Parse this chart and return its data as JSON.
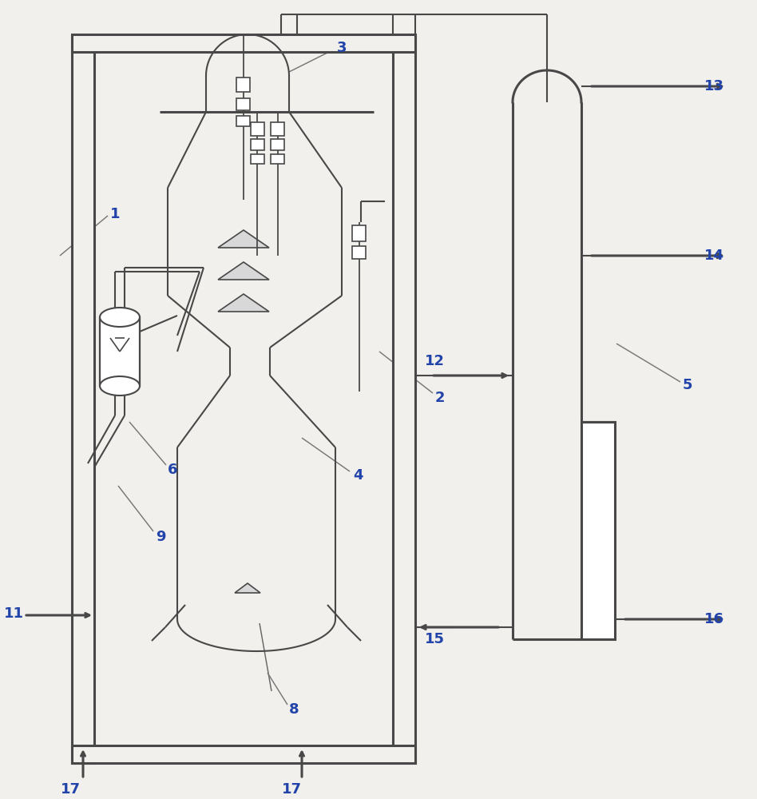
{
  "bg_color": "#f2f0ec",
  "lc": "#484848",
  "lw": 1.5,
  "lw2": 2.2,
  "label_color": "#2244aa",
  "label_fs": 13,
  "label_fw": "bold"
}
